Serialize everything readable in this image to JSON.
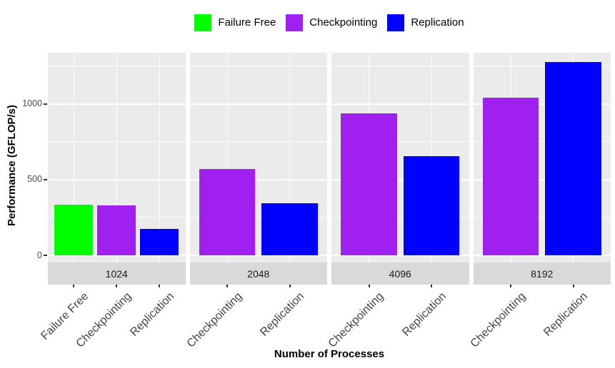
{
  "theme": {
    "background": "#FFFFFF",
    "panel_bg": "#EBEBEB",
    "strip_bg": "#D9D9D9",
    "gridline": "#FFFFFF",
    "tick": "#333333",
    "axis_text": "#4D4D4D",
    "category_text": "#444444",
    "strip_text": "#1A1A1A",
    "title_text": "#000000"
  },
  "chart_data": {
    "type": "bar",
    "title": "",
    "xlabel": "Number of Processes",
    "ylabel": "Performance (GFLOP/s)",
    "legend_position": "top",
    "grid": true,
    "ylim": [
      0,
      1340
    ],
    "y_ticks": [
      {
        "value": 0,
        "label": "0"
      },
      {
        "value": 500,
        "label": "500"
      },
      {
        "value": 1000,
        "label": "1000"
      }
    ],
    "y_minor_gridlines": [
      250,
      750,
      1250
    ],
    "legend": [
      {
        "label": "Failure Free",
        "color": "#00FF00"
      },
      {
        "label": "Checkpointing",
        "color": "#A020F0"
      },
      {
        "label": "Replication",
        "color": "#0000FF"
      }
    ],
    "facets": [
      {
        "label": "1024",
        "bars": [
          {
            "category": "Failure Free",
            "value": 335
          },
          {
            "category": "Checkpointing",
            "value": 330
          },
          {
            "category": "Replication",
            "value": 175
          }
        ]
      },
      {
        "label": "2048",
        "bars": [
          {
            "category": "Checkpointing",
            "value": 570
          },
          {
            "category": "Replication",
            "value": 345
          }
        ]
      },
      {
        "label": "4096",
        "bars": [
          {
            "category": "Checkpointing",
            "value": 935
          },
          {
            "category": "Replication",
            "value": 655
          }
        ]
      },
      {
        "label": "8192",
        "bars": [
          {
            "category": "Checkpointing",
            "value": 1040
          },
          {
            "category": "Replication",
            "value": 1275
          }
        ]
      }
    ]
  }
}
